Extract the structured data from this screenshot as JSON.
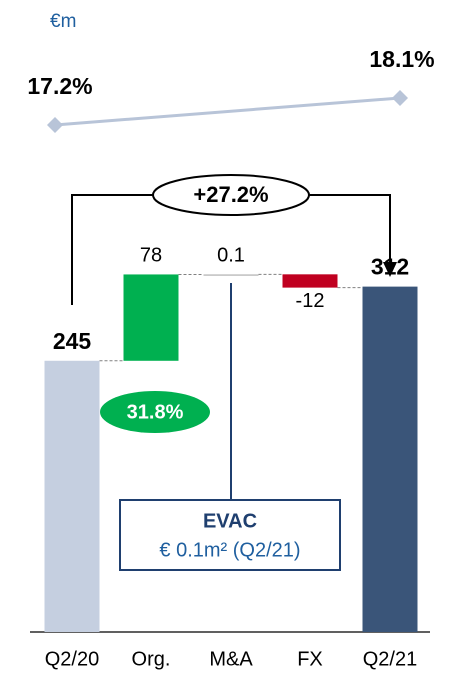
{
  "chart_data": {
    "type": "waterfall",
    "unit": "€m",
    "categories": [
      "Q2/20",
      "Org.",
      "M&A",
      "FX",
      "Q2/21"
    ],
    "values": [
      245,
      78,
      0.1,
      -12,
      312
    ],
    "totals": [
      true,
      false,
      false,
      false,
      true
    ],
    "colors": [
      "#c5cfe0",
      "#00b050",
      "#bfbfbf",
      "#c00020",
      "#3a5579"
    ],
    "margin_line": {
      "type": "line",
      "color": "#b8c4d8",
      "values": [
        17.2,
        18.1
      ],
      "value_labels": [
        "17.2%",
        "18.1%"
      ]
    },
    "annotations": {
      "change": "+27.2%",
      "organic_growth": "31.8%",
      "evac_title": "EVAC",
      "evac_text": "€ 0.1m² (Q2/21)"
    }
  }
}
